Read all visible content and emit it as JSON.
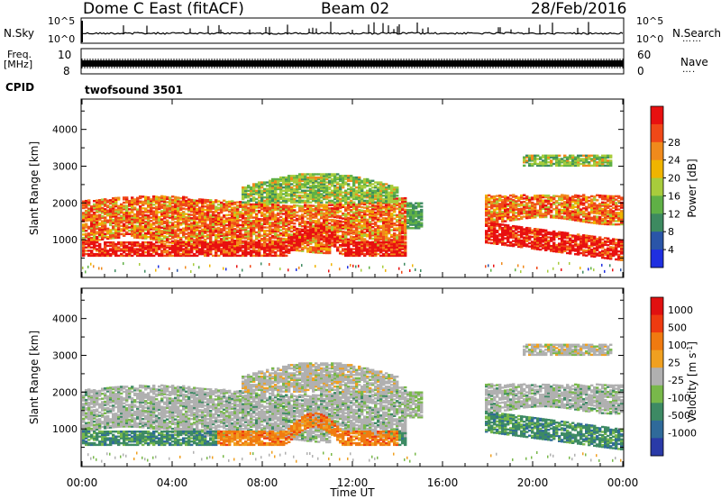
{
  "header": {
    "title": "Dome C East (fitACF)",
    "beam": "Beam 02",
    "date": "28/Feb/2016"
  },
  "panels": {
    "nsky": {
      "label": "N.Sky",
      "tick_top": "10^5",
      "tick_bottom": "10^0"
    },
    "nsearch": {
      "label": "N.Search",
      "dots": "……",
      "tick_top": "10^5",
      "tick_bottom": "10^0"
    },
    "freq": {
      "label_line1": "Freq.",
      "label_line2": "[MHz]",
      "tick_top": "10",
      "tick_bottom": "8"
    },
    "nave": {
      "label": "Nave",
      "dots": "….",
      "tick_top": "60",
      "tick_bottom": "0"
    },
    "cpid": {
      "label": "CPID",
      "value": "twofsound 3501"
    }
  },
  "colors": {
    "power_scale": [
      "#1f2fe0",
      "#2a55a8",
      "#3d8a60",
      "#5fb046",
      "#a8cc3c",
      "#f0b400",
      "#f08a1c",
      "#f04818",
      "#e81010"
    ],
    "velocity_scale": [
      "#2a3aa8",
      "#2f6a9a",
      "#3d8a64",
      "#78b84a",
      "#b0b0b0",
      "#f0a020",
      "#f07a10",
      "#ee3a10",
      "#e01010"
    ]
  },
  "chart_data": [
    {
      "type": "heatmap",
      "name": "power",
      "ylabel": "Slant Range [km]",
      "yticks": [
        "1000",
        "2000",
        "3000",
        "4000"
      ],
      "xticks": [
        "00:00",
        "04:00",
        "08:00",
        "12:00",
        "16:00",
        "20:00",
        "00:00"
      ],
      "colorbar": {
        "label": "Power [dB]",
        "ticks": [
          "4",
          "8",
          "12",
          "16",
          "20",
          "24",
          "28"
        ],
        "range": [
          0,
          32
        ]
      },
      "ylim": [
        0,
        4800
      ],
      "xlim": [
        0,
        24
      ]
    },
    {
      "type": "heatmap",
      "name": "velocity",
      "ylabel": "Slant Range [km]",
      "yticks": [
        "1000",
        "2000",
        "3000",
        "4000"
      ],
      "xticks": [
        "00:00",
        "04:00",
        "08:00",
        "12:00",
        "16:00",
        "20:00",
        "00:00"
      ],
      "xlabel": "Time UT",
      "colorbar": {
        "label": "Velocity [m s",
        "label_sup": "-1",
        "label_end": "]",
        "ticks": [
          "1000",
          "500",
          "100",
          "25",
          "-25",
          "-100",
          "-500",
          "-1000"
        ]
      },
      "ylim": [
        0,
        4800
      ],
      "xlim": [
        0,
        24
      ]
    }
  ]
}
